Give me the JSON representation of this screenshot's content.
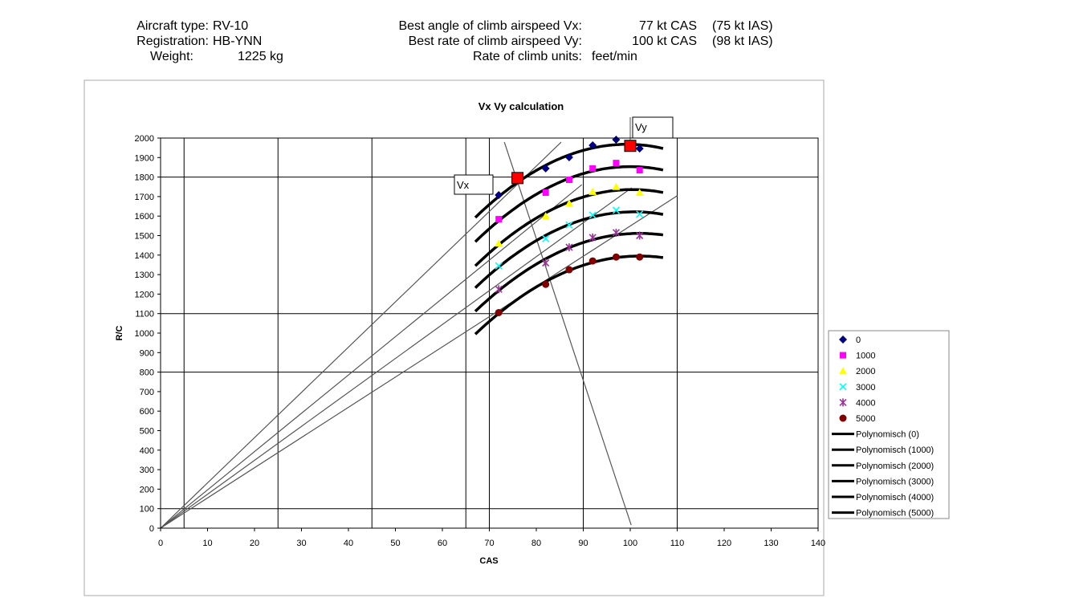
{
  "header": {
    "aircraft_type_label": "Aircraft type:",
    "aircraft_type": "RV-10",
    "registration_label": "Registration:",
    "registration": "HB-YNN",
    "weight_label": "Weight:",
    "weight": "1225 kg",
    "vx_label": "Best angle of climb airspeed Vx:",
    "vx_cas": "77 kt CAS",
    "vx_ias": "(75 kt IAS)",
    "vy_label": "Best rate of climb airspeed Vy:",
    "vy_cas": "100 kt CAS",
    "vy_ias": "(98 kt IAS)",
    "units_label": "Rate of climb units:",
    "units": "feet/min"
  },
  "chart_data": {
    "type": "scatter",
    "title": "Vx Vy calculation",
    "xlabel": "CAS",
    "ylabel": "R/C",
    "xlim": [
      0,
      140
    ],
    "ylim": [
      0,
      2000
    ],
    "xticks": [
      0,
      10,
      20,
      30,
      40,
      50,
      60,
      70,
      80,
      90,
      100,
      110,
      120,
      130,
      140
    ],
    "yticks": [
      0,
      100,
      200,
      300,
      400,
      500,
      600,
      700,
      800,
      900,
      1000,
      1100,
      1200,
      1300,
      1400,
      1500,
      1600,
      1700,
      1800,
      1900,
      2000
    ],
    "x": [
      72,
      82,
      87,
      92,
      97,
      102
    ],
    "series": [
      {
        "name": "0",
        "color": "#000080",
        "marker": "diamond",
        "values": [
          1708,
          1844,
          1901,
          1963,
          1992,
          1946
        ]
      },
      {
        "name": "1000",
        "color": "#ff00ff",
        "marker": "square",
        "values": [
          1584,
          1720,
          1786,
          1844,
          1872,
          1835
        ]
      },
      {
        "name": "2000",
        "color": "#ffff00",
        "marker": "triangle",
        "values": [
          1460,
          1600,
          1665,
          1725,
          1750,
          1720
        ]
      },
      {
        "name": "3000",
        "color": "#00ffff",
        "marker": "x",
        "values": [
          1345,
          1485,
          1555,
          1605,
          1630,
          1610
        ]
      },
      {
        "name": "4000",
        "color": "#993399",
        "marker": "star",
        "values": [
          1225,
          1360,
          1440,
          1490,
          1515,
          1500
        ]
      },
      {
        "name": "5000",
        "color": "#800000",
        "marker": "circle",
        "values": [
          1105,
          1250,
          1325,
          1370,
          1390,
          1390
        ]
      }
    ],
    "trendlines": [
      {
        "name": "Polynomisch (0)"
      },
      {
        "name": "Polynomisch (1000)"
      },
      {
        "name": "Polynomisch (2000)"
      },
      {
        "name": "Polynomisch (3000)"
      },
      {
        "name": "Polynomisch (4000)"
      },
      {
        "name": "Polynomisch (5000)"
      }
    ],
    "trend_range": [
      67,
      107
    ],
    "tangent_lines": [
      [
        85.3,
        1979
      ],
      [
        89.7,
        1761
      ],
      [
        100.3,
        1745
      ],
      [
        110,
        1704
      ]
    ],
    "vx_line": [
      [
        73.2,
        1979
      ],
      [
        100.2,
        16
      ]
    ],
    "vx_point": [
      76,
      1795
    ],
    "vy_point": [
      100,
      1960
    ],
    "annotations": [
      {
        "text": "Vx"
      },
      {
        "text": "Vy"
      }
    ],
    "gridlines_x": [
      5,
      25,
      45,
      65,
      70,
      90,
      110
    ],
    "gridlines_y": [
      100,
      800,
      1100,
      1800
    ],
    "legend": "right"
  }
}
